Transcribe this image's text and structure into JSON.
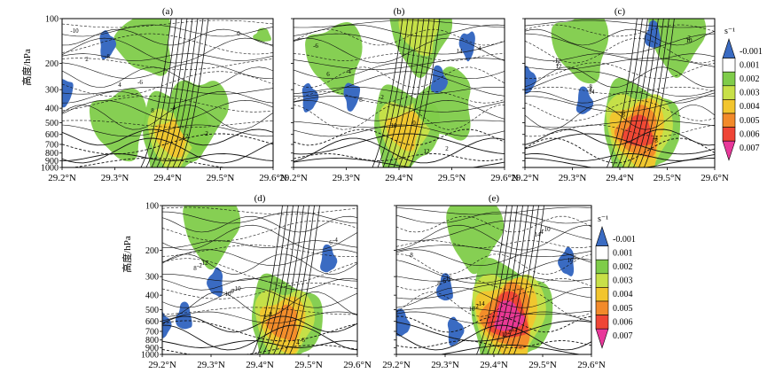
{
  "chart_data": [
    {
      "panel": "(a)",
      "type": "contour",
      "x_ticks": [
        "29.2°N",
        "29.3°N",
        "29.4°N",
        "29.5°N",
        "29.6°N"
      ],
      "xlim": [
        29.2,
        29.6
      ],
      "y_ticks": [
        100,
        200,
        300,
        400,
        500,
        600,
        700,
        800,
        900,
        1000
      ],
      "ylim": [
        1000,
        100
      ],
      "y_scale": "log-pressure",
      "ylabel": "高度/hPa",
      "shaded_centers": [
        {
          "lat": 29.41,
          "p": 620,
          "value": 0.004
        },
        {
          "lat": 29.46,
          "p": 420,
          "value": 0.002
        },
        {
          "lat": 29.31,
          "p": 500,
          "value": 0.002
        },
        {
          "lat": 29.36,
          "p": 140,
          "value": 0.002
        },
        {
          "lat": 29.58,
          "p": 130,
          "value": 0.001
        },
        {
          "lat": 29.285,
          "p": 150,
          "value": -0.001
        },
        {
          "lat": 29.205,
          "p": 310,
          "value": -0.001
        }
      ],
      "contour_labels": [
        "-10",
        "-8",
        "-6",
        "-4",
        "-2",
        "0",
        "2",
        "4",
        "8",
        "12"
      ]
    },
    {
      "panel": "(b)",
      "type": "contour",
      "x_ticks": [
        "29.2°N",
        "29.3°N",
        "29.4°N",
        "29.5°N",
        "29.6°N"
      ],
      "xlim": [
        29.2,
        29.6
      ],
      "y_ticks": [
        100,
        200,
        300,
        400,
        500,
        600,
        700,
        800,
        900,
        1000
      ],
      "ylim": [
        1000,
        100
      ],
      "y_scale": "log-pressure",
      "shaded_centers": [
        {
          "lat": 29.41,
          "p": 560,
          "value": 0.004
        },
        {
          "lat": 29.44,
          "p": 120,
          "value": 0.003
        },
        {
          "lat": 29.28,
          "p": 180,
          "value": 0.002
        },
        {
          "lat": 29.49,
          "p": 380,
          "value": 0.002
        },
        {
          "lat": 29.475,
          "p": 260,
          "value": -0.001
        },
        {
          "lat": 29.23,
          "p": 340,
          "value": -0.001
        },
        {
          "lat": 29.31,
          "p": 330,
          "value": -0.001
        },
        {
          "lat": 29.53,
          "p": 150,
          "value": -0.001
        }
      ],
      "contour_labels": [
        "-6",
        "-4",
        "-2",
        "0",
        "2",
        "4",
        "6",
        "8",
        "10",
        "12",
        "14"
      ]
    },
    {
      "panel": "(c)",
      "type": "contour",
      "x_ticks": [
        "29.2°N",
        "29.3°N",
        "29.4°N",
        "29.5°N",
        "29.6°N"
      ],
      "xlim": [
        29.2,
        29.6
      ],
      "y_ticks": [
        100,
        200,
        300,
        400,
        500,
        600,
        700,
        800,
        900,
        1000
      ],
      "ylim": [
        1000,
        100
      ],
      "y_scale": "log-pressure",
      "shaded_centers": [
        {
          "lat": 29.44,
          "p": 580,
          "value": 0.006
        },
        {
          "lat": 29.52,
          "p": 130,
          "value": 0.002
        },
        {
          "lat": 29.32,
          "p": 150,
          "value": 0.002
        },
        {
          "lat": 29.47,
          "p": 130,
          "value": -0.001
        },
        {
          "lat": 29.325,
          "p": 360,
          "value": -0.001
        },
        {
          "lat": 29.205,
          "p": 260,
          "value": -0.001
        }
      ],
      "contour_labels": [
        "-12",
        "-8",
        "-6",
        "-4",
        "-2",
        "2",
        "4",
        "6",
        "8",
        "10",
        "12",
        "14"
      ]
    },
    {
      "panel": "(d)",
      "type": "contour",
      "x_ticks": [
        "29.2°N",
        "29.3°N",
        "29.4°N",
        "29.5°N",
        "29.6°N"
      ],
      "xlim": [
        29.2,
        29.6
      ],
      "y_ticks": [
        100,
        200,
        300,
        400,
        500,
        600,
        700,
        800,
        900,
        1000
      ],
      "ylim": [
        1000,
        100
      ],
      "y_scale": "log-pressure",
      "ylabel": "高度/hPa",
      "shaded_centers": [
        {
          "lat": 29.45,
          "p": 620,
          "value": 0.005
        },
        {
          "lat": 29.3,
          "p": 140,
          "value": 0.002
        },
        {
          "lat": 29.31,
          "p": 330,
          "value": -0.001
        },
        {
          "lat": 29.245,
          "p": 560,
          "value": -0.001
        },
        {
          "lat": 29.54,
          "p": 230,
          "value": -0.001
        },
        {
          "lat": 29.2,
          "p": 640,
          "value": -0.001
        }
      ],
      "contour_labels": [
        "-12",
        "-10",
        "-8",
        "-6",
        "-4",
        "-2",
        "0",
        "2",
        "4",
        "6",
        "8",
        "10"
      ]
    },
    {
      "panel": "(e)",
      "type": "contour",
      "x_ticks": [
        "29.2°N",
        "29.3°N",
        "29.4°N",
        "29.5°N",
        "29.6°N"
      ],
      "xlim": [
        29.2,
        29.6
      ],
      "y_ticks": [
        100,
        200,
        300,
        400,
        500,
        600,
        700,
        800,
        900,
        1000
      ],
      "ylim": [
        1000,
        100
      ],
      "y_scale": "log-pressure",
      "shaded_centers": [
        {
          "lat": 29.43,
          "p": 560,
          "value": 0.007
        },
        {
          "lat": 29.36,
          "p": 150,
          "value": 0.002
        },
        {
          "lat": 29.55,
          "p": 240,
          "value": -0.001
        },
        {
          "lat": 29.3,
          "p": 360,
          "value": -0.001
        },
        {
          "lat": 29.21,
          "p": 620,
          "value": -0.001
        },
        {
          "lat": 29.32,
          "p": 700,
          "value": -0.001
        }
      ],
      "contour_labels": [
        "-16",
        "-14",
        "-12",
        "-10",
        "-8",
        "-6",
        "-2",
        "2",
        "4",
        "6",
        "8",
        "10",
        "12",
        "14",
        "16"
      ]
    }
  ],
  "colorbars": [
    {
      "unit": "s⁻¹",
      "levels": [
        "-0.001",
        "0.001",
        "0.002",
        "0.003",
        "0.004",
        "0.005",
        "0.006",
        "0.007"
      ],
      "colors": [
        "#3a6bc2",
        "#ffffff",
        "#7fcc4a",
        "#c8e048",
        "#f2c52e",
        "#f28a2a",
        "#ef4535",
        "#e8389a"
      ]
    },
    {
      "unit": "s⁻¹",
      "levels": [
        "-0.001",
        "0.001",
        "0.002",
        "0.003",
        "0.004",
        "0.005",
        "0.006",
        "0.007"
      ],
      "colors": [
        "#3a6bc2",
        "#ffffff",
        "#7fcc4a",
        "#c8e048",
        "#f2c52e",
        "#f28a2a",
        "#ef4535",
        "#e8389a"
      ]
    }
  ],
  "shade_colors": {
    "neg": "#3a6bc2",
    "v002": "#7fcc4a",
    "v003": "#c8e048",
    "v004": "#f2c52e",
    "v005": "#f28a2a",
    "v006": "#ef4535",
    "v007": "#e8389a"
  }
}
